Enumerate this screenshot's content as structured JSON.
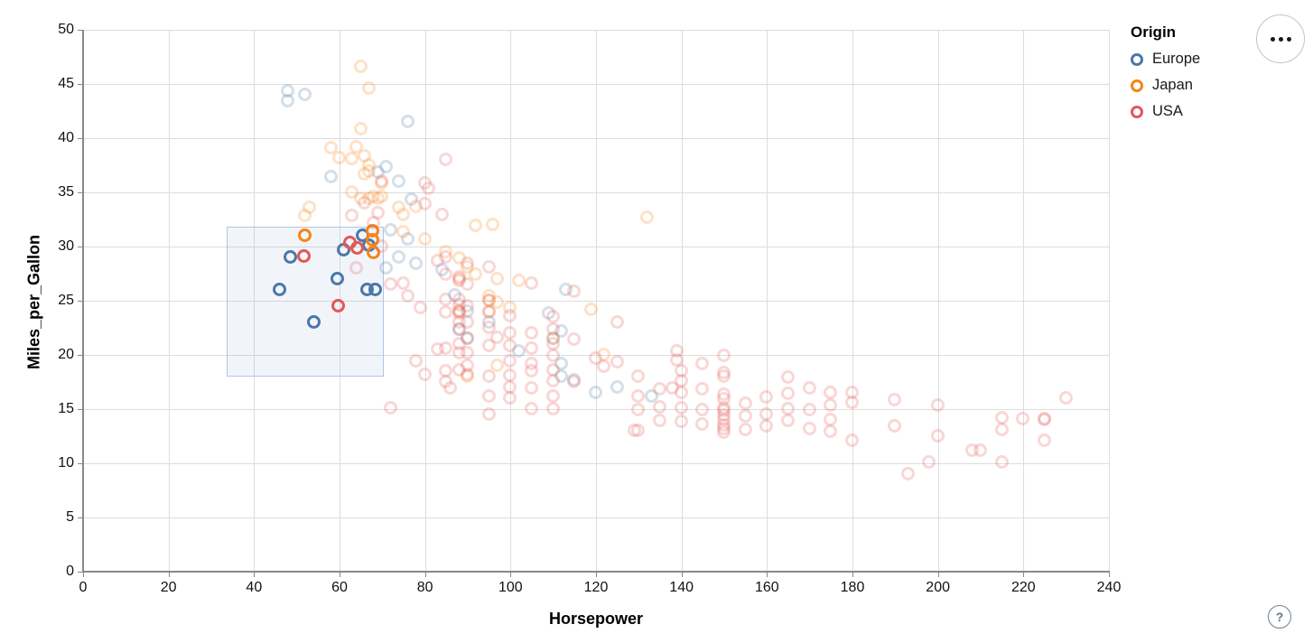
{
  "figure": {
    "x_axis_title": "Horsepower",
    "y_axis_title": "Miles_per_Gallon",
    "legend": {
      "title": "Origin",
      "items": [
        {
          "label": "Europe",
          "color": "#4c78a8"
        },
        {
          "label": "Japan",
          "color": "#f58518"
        },
        {
          "label": "USA",
          "color": "#e45756"
        }
      ]
    },
    "controls": {
      "menu_button": "options-menu",
      "help_button_glyph": "?"
    }
  },
  "chart_data": {
    "type": "scatter",
    "title": "",
    "xlabel": "Horsepower",
    "ylabel": "Miles_per_Gallon",
    "xlim": [
      0,
      240
    ],
    "ylim": [
      0,
      50
    ],
    "x_ticks": [
      0,
      20,
      40,
      60,
      80,
      100,
      120,
      140,
      160,
      180,
      200,
      220,
      240
    ],
    "y_ticks": [
      0,
      5,
      10,
      15,
      20,
      25,
      30,
      35,
      40,
      45,
      50
    ],
    "grid": true,
    "legend_position": "top-right",
    "point_style": {
      "shape": "open-circle",
      "unselected_opacity": 0.24,
      "selected_opacity": 1
    },
    "brush_selection": {
      "x": [
        33.5,
        70
      ],
      "y": [
        18.2,
        31.8
      ]
    },
    "series": [
      {
        "name": "Europe",
        "color": "#4c78a8",
        "points": [
          [
            46,
            26,
            1
          ],
          [
            48.5,
            29,
            1
          ],
          [
            54,
            23,
            1
          ],
          [
            59.5,
            27,
            1
          ],
          [
            66.5,
            26,
            1
          ],
          [
            68.5,
            26,
            1
          ],
          [
            61,
            29.7,
            1
          ],
          [
            65.5,
            31,
            1
          ],
          [
            67,
            30.1,
            1
          ],
          [
            48,
            44.3,
            0
          ],
          [
            52,
            44,
            0
          ],
          [
            48,
            43.4,
            0
          ],
          [
            76,
            41.5,
            0
          ],
          [
            71,
            37.3,
            0
          ],
          [
            69,
            36.8,
            0
          ],
          [
            58,
            36.4,
            0
          ],
          [
            74,
            36,
            0
          ],
          [
            77,
            34.3,
            0
          ],
          [
            72,
            31.5,
            0
          ],
          [
            76,
            30.7,
            0
          ],
          [
            74,
            29,
            0
          ],
          [
            78,
            28.4,
            0
          ],
          [
            71,
            28,
            0
          ],
          [
            84,
            27.8,
            0
          ],
          [
            87,
            25.5,
            0
          ],
          [
            90,
            24,
            0
          ],
          [
            113,
            26,
            0
          ],
          [
            109,
            23.8,
            0
          ],
          [
            95,
            23,
            0
          ],
          [
            88,
            22.3,
            0
          ],
          [
            112,
            22.2,
            0
          ],
          [
            90,
            21.5,
            0
          ],
          [
            102,
            20.3,
            0
          ],
          [
            110,
            21.5,
            0
          ],
          [
            112,
            19.2,
            0
          ],
          [
            112,
            18,
            0
          ],
          [
            115,
            17.7,
            0
          ],
          [
            120,
            16.5,
            0
          ],
          [
            125,
            17,
            0
          ],
          [
            133,
            16.2,
            0
          ]
        ]
      },
      {
        "name": "Japan",
        "color": "#f58518",
        "points": [
          [
            52,
            31,
            1
          ],
          [
            67.8,
            31.4,
            1
          ],
          [
            67.8,
            30.6,
            1
          ],
          [
            68,
            29.4,
            1
          ],
          [
            65,
            46.6,
            0
          ],
          [
            67,
            44.6,
            0
          ],
          [
            65,
            40.8,
            0
          ],
          [
            58,
            39.1,
            0
          ],
          [
            64,
            39.2,
            0
          ],
          [
            60,
            38.2,
            0
          ],
          [
            63,
            38.1,
            0
          ],
          [
            66,
            38.3,
            0
          ],
          [
            67,
            37.5,
            0
          ],
          [
            67,
            36.9,
            0
          ],
          [
            66,
            36.7,
            0
          ],
          [
            63,
            35,
            0
          ],
          [
            65,
            34.4,
            0
          ],
          [
            67,
            34.4,
            0
          ],
          [
            68,
            34.6,
            0
          ],
          [
            69,
            34.4,
            0
          ],
          [
            70,
            35.8,
            0
          ],
          [
            70,
            34.6,
            0
          ],
          [
            53,
            33.6,
            0
          ],
          [
            52,
            32.8,
            0
          ],
          [
            74,
            33.6,
            0
          ],
          [
            75,
            32.9,
            0
          ],
          [
            132,
            32.7,
            0
          ],
          [
            75,
            31.3,
            0
          ],
          [
            80,
            30.7,
            0
          ],
          [
            85,
            29.5,
            0
          ],
          [
            88,
            28.9,
            0
          ],
          [
            90,
            28.1,
            0
          ],
          [
            92,
            27.4,
            0
          ],
          [
            95,
            25.4,
            0
          ],
          [
            97,
            24.8,
            0
          ],
          [
            100,
            24.3,
            0
          ],
          [
            88,
            24,
            0
          ],
          [
            95,
            24,
            0
          ],
          [
            97,
            27,
            0
          ],
          [
            88,
            27,
            0
          ],
          [
            95,
            25,
            0
          ],
          [
            102,
            26.8,
            0
          ],
          [
            119,
            24.2,
            0
          ],
          [
            110,
            21.5,
            0
          ],
          [
            97,
            19,
            0
          ],
          [
            90,
            18,
            0
          ],
          [
            122,
            20,
            0
          ],
          [
            92,
            31.9,
            0
          ],
          [
            96,
            32,
            0
          ],
          [
            78,
            33.7,
            0
          ]
        ]
      },
      {
        "name": "USA",
        "color": "#e45756",
        "points": [
          [
            51.8,
            29.1,
            1
          ],
          [
            59.8,
            24.5,
            1
          ],
          [
            62.5,
            30.3,
            1
          ],
          [
            64.3,
            29.8,
            1
          ],
          [
            85,
            38,
            0
          ],
          [
            70,
            36,
            0
          ],
          [
            80,
            35.8,
            0
          ],
          [
            81,
            35.3,
            0
          ],
          [
            80,
            33.9,
            0
          ],
          [
            84,
            32.9,
            0
          ],
          [
            66,
            34,
            0
          ],
          [
            63,
            32.8,
            0
          ],
          [
            69,
            33.1,
            0
          ],
          [
            68,
            32.2,
            0
          ],
          [
            64,
            28,
            0
          ],
          [
            70,
            30,
            0
          ],
          [
            72,
            26.5,
            0
          ],
          [
            75,
            26.6,
            0
          ],
          [
            76,
            25.4,
            0
          ],
          [
            79,
            24.3,
            0
          ],
          [
            83,
            28.7,
            0
          ],
          [
            85,
            29,
            0
          ],
          [
            85,
            27.4,
            0
          ],
          [
            85,
            25.1,
            0
          ],
          [
            85,
            23.9,
            0
          ],
          [
            85,
            20.6,
            0
          ],
          [
            85,
            18.5,
            0
          ],
          [
            85,
            17.5,
            0
          ],
          [
            86,
            16.9,
            0
          ],
          [
            88,
            27.2,
            0
          ],
          [
            88,
            26.8,
            0
          ],
          [
            88,
            25.1,
            0
          ],
          [
            88,
            24.6,
            0
          ],
          [
            88,
            24,
            0
          ],
          [
            88,
            23.8,
            0
          ],
          [
            88,
            23,
            0
          ],
          [
            88,
            22.3,
            0
          ],
          [
            88,
            21,
            0
          ],
          [
            88,
            20.2,
            0
          ],
          [
            88,
            18.6,
            0
          ],
          [
            90,
            28.4,
            0
          ],
          [
            90,
            26.5,
            0
          ],
          [
            90,
            24.5,
            0
          ],
          [
            90,
            23,
            0
          ],
          [
            90,
            21.5,
            0
          ],
          [
            90,
            20.2,
            0
          ],
          [
            90,
            19,
            0
          ],
          [
            90,
            18.2,
            0
          ],
          [
            95,
            28.1,
            0
          ],
          [
            95,
            25,
            0
          ],
          [
            95,
            23.9,
            0
          ],
          [
            95,
            22.5,
            0
          ],
          [
            95,
            20.8,
            0
          ],
          [
            95,
            18,
            0
          ],
          [
            95,
            16.2,
            0
          ],
          [
            95,
            14.5,
            0
          ],
          [
            97,
            21.6,
            0
          ],
          [
            100,
            23.6,
            0
          ],
          [
            100,
            22,
            0
          ],
          [
            100,
            20.8,
            0
          ],
          [
            100,
            19.4,
            0
          ],
          [
            100,
            18.1,
            0
          ],
          [
            100,
            17,
            0
          ],
          [
            100,
            16,
            0
          ],
          [
            105,
            26.6,
            0
          ],
          [
            105,
            22,
            0
          ],
          [
            105,
            20.6,
            0
          ],
          [
            105,
            19.2,
            0
          ],
          [
            105,
            18.5,
            0
          ],
          [
            105,
            16.9,
            0
          ],
          [
            105,
            15,
            0
          ],
          [
            110,
            23.5,
            0
          ],
          [
            110,
            22.3,
            0
          ],
          [
            110,
            21,
            0
          ],
          [
            110,
            19.9,
            0
          ],
          [
            110,
            18.6,
            0
          ],
          [
            110,
            17.6,
            0
          ],
          [
            110,
            16.2,
            0
          ],
          [
            110,
            15,
            0
          ],
          [
            115,
            25.8,
            0
          ],
          [
            115,
            21.4,
            0
          ],
          [
            115,
            17.5,
            0
          ],
          [
            120,
            19.7,
            0
          ],
          [
            122,
            18.9,
            0
          ],
          [
            125,
            23,
            0
          ],
          [
            125,
            19.3,
            0
          ],
          [
            129,
            13,
            0
          ],
          [
            130,
            13,
            0
          ],
          [
            130,
            18,
            0
          ],
          [
            130,
            16.2,
            0
          ],
          [
            130,
            14.9,
            0
          ],
          [
            72,
            15.1,
            0
          ],
          [
            78,
            19.4,
            0
          ],
          [
            80,
            18.2,
            0
          ],
          [
            83,
            20.5,
            0
          ],
          [
            135,
            16.8,
            0
          ],
          [
            135,
            15.2,
            0
          ],
          [
            135,
            13.9,
            0
          ],
          [
            138,
            16.9,
            0
          ],
          [
            139,
            20.3,
            0
          ],
          [
            139,
            19.5,
            0
          ],
          [
            140,
            18.5,
            0
          ],
          [
            140,
            17.6,
            0
          ],
          [
            140,
            16.5,
            0
          ],
          [
            140,
            15.1,
            0
          ],
          [
            140,
            13.8,
            0
          ],
          [
            145,
            19.2,
            0
          ],
          [
            145,
            16.8,
            0
          ],
          [
            145,
            14.9,
            0
          ],
          [
            145,
            13.6,
            0
          ],
          [
            150,
            19.9,
            0
          ],
          [
            150,
            18.3,
            0
          ],
          [
            150,
            18,
            0
          ],
          [
            150,
            16.3,
            0
          ],
          [
            150,
            15.9,
            0
          ],
          [
            150,
            15.1,
            0
          ],
          [
            150,
            14.8,
            0
          ],
          [
            150,
            14.4,
            0
          ],
          [
            150,
            14,
            0
          ],
          [
            150,
            13.5,
            0
          ],
          [
            150,
            13.2,
            0
          ],
          [
            150,
            12.8,
            0
          ],
          [
            155,
            15.5,
            0
          ],
          [
            155,
            14.3,
            0
          ],
          [
            155,
            13.1,
            0
          ],
          [
            160,
            16.1,
            0
          ],
          [
            160,
            14.5,
            0
          ],
          [
            160,
            13.4,
            0
          ],
          [
            165,
            17.9,
            0
          ],
          [
            165,
            16.4,
            0
          ],
          [
            165,
            15,
            0
          ],
          [
            165,
            13.9,
            0
          ],
          [
            170,
            16.9,
            0
          ],
          [
            170,
            14.9,
            0
          ],
          [
            170,
            13.2,
            0
          ],
          [
            175,
            16.5,
            0
          ],
          [
            175,
            15.3,
            0
          ],
          [
            175,
            14,
            0
          ],
          [
            175,
            12.9,
            0
          ],
          [
            180,
            16.5,
            0
          ],
          [
            180,
            15.6,
            0
          ],
          [
            180,
            12.1,
            0
          ],
          [
            190,
            15.8,
            0
          ],
          [
            190,
            13.4,
            0
          ],
          [
            193,
            9,
            0
          ],
          [
            198,
            10.1,
            0
          ],
          [
            200,
            15.3,
            0
          ],
          [
            200,
            12.5,
            0
          ],
          [
            208,
            11.2,
            0
          ],
          [
            210,
            11.2,
            0
          ],
          [
            215,
            14.2,
            0
          ],
          [
            215,
            13.1,
            0
          ],
          [
            215,
            10.1,
            0
          ],
          [
            220,
            14.1,
            0
          ],
          [
            225,
            14.1,
            0
          ],
          [
            225,
            14,
            0
          ],
          [
            225,
            12.1,
            0
          ],
          [
            230,
            16,
            0
          ]
        ]
      }
    ]
  }
}
